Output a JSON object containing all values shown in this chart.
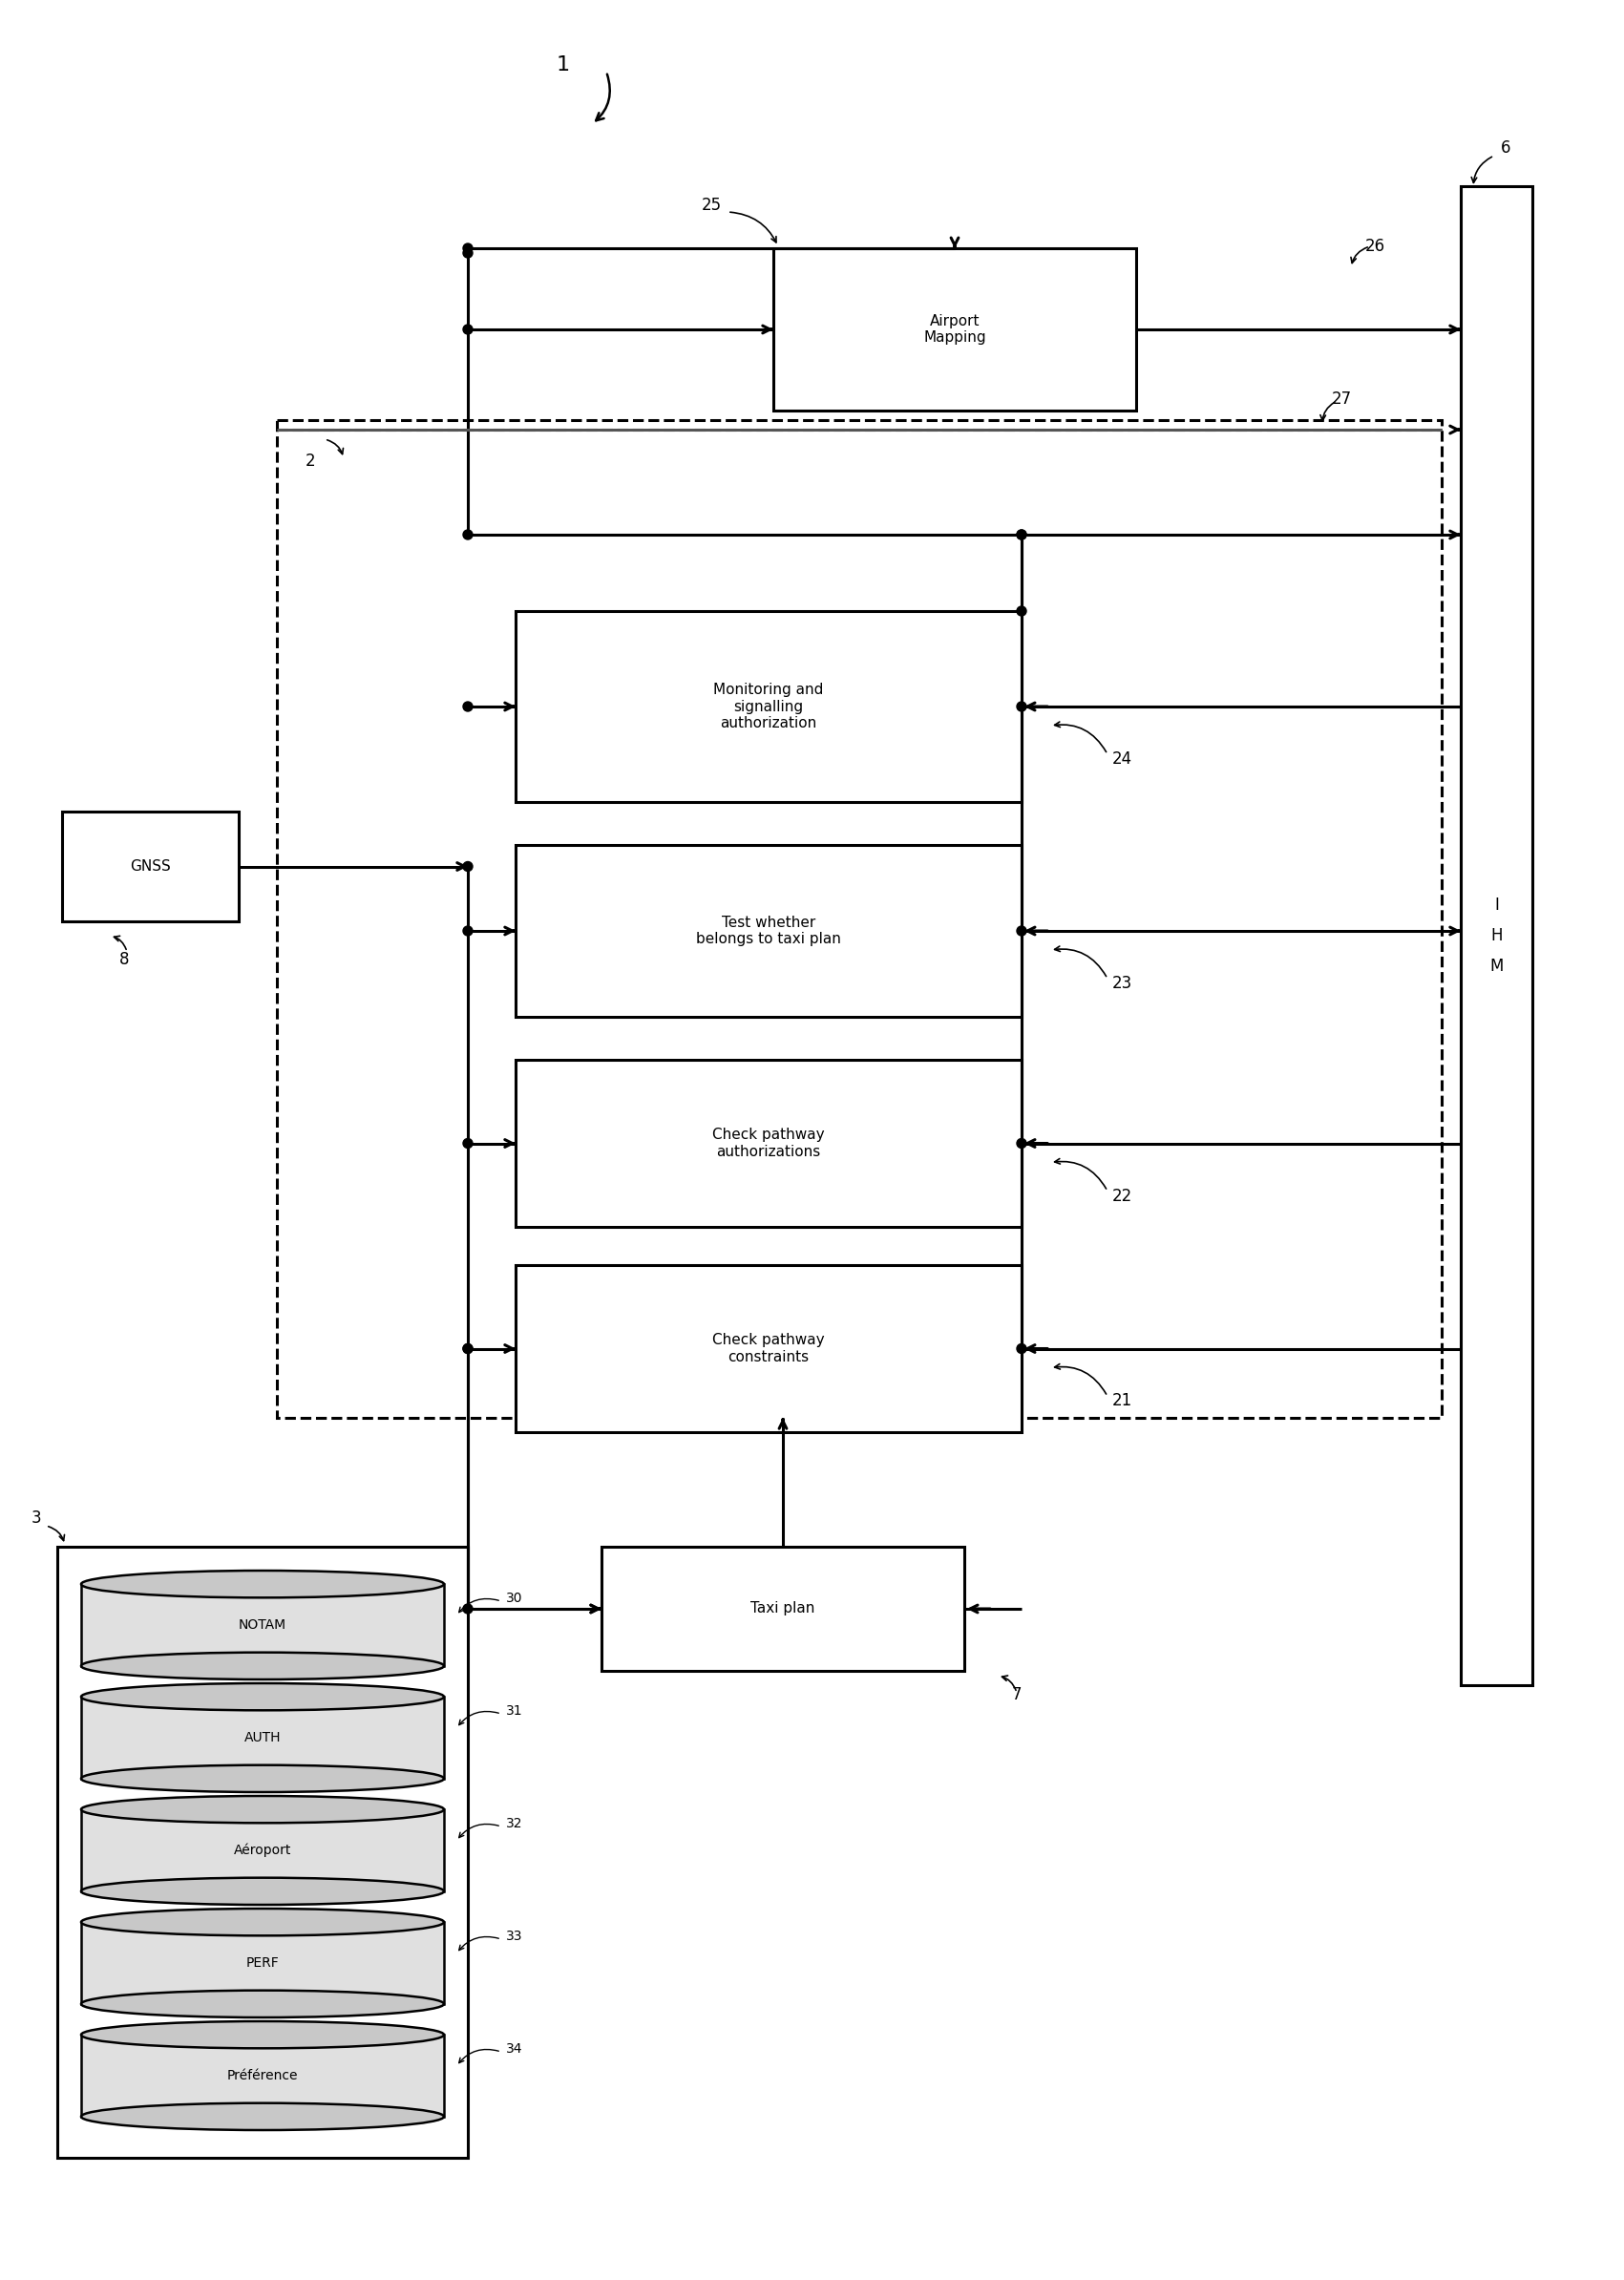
{
  "fig_width": 17.01,
  "fig_height": 23.88,
  "bg_color": "#ffffff",
  "label_1": "1",
  "label_2": "2",
  "label_3": "3",
  "label_6": "6",
  "label_7": "7",
  "label_8": "8",
  "label_21": "21",
  "label_22": "22",
  "label_23": "23",
  "label_24": "24",
  "label_25": "25",
  "label_26": "26",
  "label_27": "27",
  "label_30": "30",
  "label_31": "31",
  "label_32": "32",
  "label_33": "33",
  "label_34": "34",
  "box_airport": "Airport\nMapping",
  "box_monitoring": "Monitoring and\nsignalling\nauthorization",
  "box_test": "Test whether\nbelongs to taxi plan",
  "box_check_auth": "Check pathway\nauthorizations",
  "box_check_const": "Check pathway\nconstraints",
  "box_taxi": "Taxi plan",
  "box_gnss": "GNSS",
  "box_ihm": "I\nH\nM",
  "db_notam": "NOTAM",
  "db_auth": "AUTH",
  "db_aeroport": "Aéroport",
  "db_perf": "PERF",
  "db_pref": "Préférence",
  "lw": 1.8,
  "lw_thick": 2.2,
  "fs": 11,
  "fs_label": 12,
  "fs_small": 10
}
